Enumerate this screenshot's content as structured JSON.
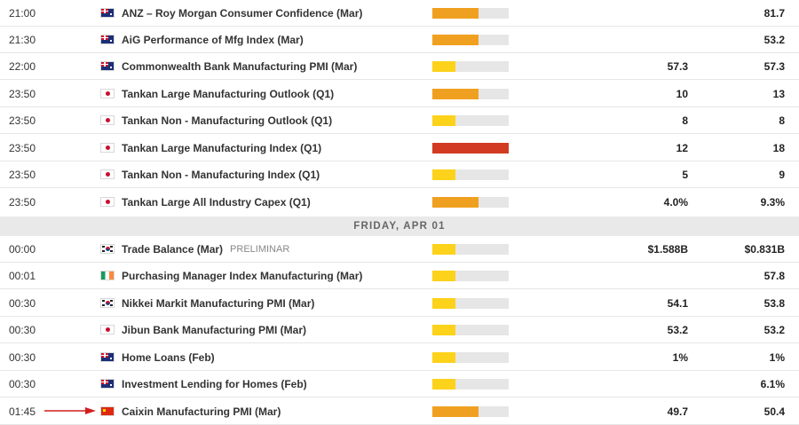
{
  "colors": {
    "impact_high": "#d23a22",
    "impact_medium": "#f0a020",
    "impact_low": "#fcd21a",
    "bar_track": "#e6e6e6",
    "arrow": "#d11f1f"
  },
  "day_header": "FRIDAY, APR 01",
  "events": [
    {
      "time": "21:00",
      "flag": "au",
      "flag_icon": "australia-flag-icon",
      "name": "ANZ – Roy Morgan Consumer Confidence (Mar)",
      "tag": "",
      "impact": "medium",
      "impact_fraction": 0.6,
      "actual": "",
      "previous": "81.7"
    },
    {
      "time": "21:30",
      "flag": "au",
      "flag_icon": "australia-flag-icon",
      "name": "AiG Performance of Mfg Index (Mar)",
      "tag": "",
      "impact": "medium",
      "impact_fraction": 0.6,
      "actual": "",
      "previous": "53.2"
    },
    {
      "time": "22:00",
      "flag": "au",
      "flag_icon": "australia-flag-icon",
      "name": "Commonwealth Bank Manufacturing PMI (Mar)",
      "tag": "",
      "impact": "low",
      "impact_fraction": 0.3,
      "actual": "57.3",
      "previous": "57.3"
    },
    {
      "time": "23:50",
      "flag": "jp",
      "flag_icon": "japan-flag-icon",
      "name": "Tankan Large Manufacturing Outlook (Q1)",
      "tag": "",
      "impact": "medium",
      "impact_fraction": 0.6,
      "actual": "10",
      "previous": "13"
    },
    {
      "time": "23:50",
      "flag": "jp",
      "flag_icon": "japan-flag-icon",
      "name": "Tankan Non - Manufacturing Outlook (Q1)",
      "tag": "",
      "impact": "low",
      "impact_fraction": 0.3,
      "actual": "8",
      "previous": "8"
    },
    {
      "time": "23:50",
      "flag": "jp",
      "flag_icon": "japan-flag-icon",
      "name": "Tankan Large Manufacturing Index (Q1)",
      "tag": "",
      "impact": "high",
      "impact_fraction": 1.0,
      "actual": "12",
      "previous": "18"
    },
    {
      "time": "23:50",
      "flag": "jp",
      "flag_icon": "japan-flag-icon",
      "name": "Tankan Non - Manufacturing Index (Q1)",
      "tag": "",
      "impact": "low",
      "impact_fraction": 0.3,
      "actual": "5",
      "previous": "9"
    },
    {
      "time": "23:50",
      "flag": "jp",
      "flag_icon": "japan-flag-icon",
      "name": "Tankan Large All Industry Capex (Q1)",
      "tag": "",
      "impact": "medium",
      "impact_fraction": 0.6,
      "actual": "4.0%",
      "previous": "9.3%"
    },
    {
      "time": "00:00",
      "flag": "kr",
      "flag_icon": "south-korea-flag-icon",
      "name": "Trade Balance (Mar)",
      "tag": "PRELIMINAR",
      "impact": "low",
      "impact_fraction": 0.3,
      "actual": "$1.588B",
      "previous": "$0.831B"
    },
    {
      "time": "00:01",
      "flag": "ie",
      "flag_icon": "ireland-flag-icon",
      "name": "Purchasing Manager Index Manufacturing (Mar)",
      "tag": "",
      "impact": "low",
      "impact_fraction": 0.3,
      "actual": "",
      "previous": "57.8"
    },
    {
      "time": "00:30",
      "flag": "kr",
      "flag_icon": "south-korea-flag-icon",
      "name": "Nikkei Markit Manufacturing PMI (Mar)",
      "tag": "",
      "impact": "low",
      "impact_fraction": 0.3,
      "actual": "54.1",
      "previous": "53.8"
    },
    {
      "time": "00:30",
      "flag": "jp",
      "flag_icon": "japan-flag-icon",
      "name": "Jibun Bank Manufacturing PMI (Mar)",
      "tag": "",
      "impact": "low",
      "impact_fraction": 0.3,
      "actual": "53.2",
      "previous": "53.2"
    },
    {
      "time": "00:30",
      "flag": "au",
      "flag_icon": "australia-flag-icon",
      "name": "Home Loans (Feb)",
      "tag": "",
      "impact": "low",
      "impact_fraction": 0.3,
      "actual": "1%",
      "previous": "1%"
    },
    {
      "time": "00:30",
      "flag": "au",
      "flag_icon": "australia-flag-icon",
      "name": "Investment Lending for Homes (Feb)",
      "tag": "",
      "impact": "low",
      "impact_fraction": 0.3,
      "actual": "",
      "previous": "6.1%"
    },
    {
      "time": "01:45",
      "flag": "cn",
      "flag_icon": "china-flag-icon",
      "name": "Caixin Manufacturing PMI (Mar)",
      "tag": "",
      "impact": "medium",
      "impact_fraction": 0.6,
      "actual": "49.7",
      "previous": "50.4"
    }
  ]
}
